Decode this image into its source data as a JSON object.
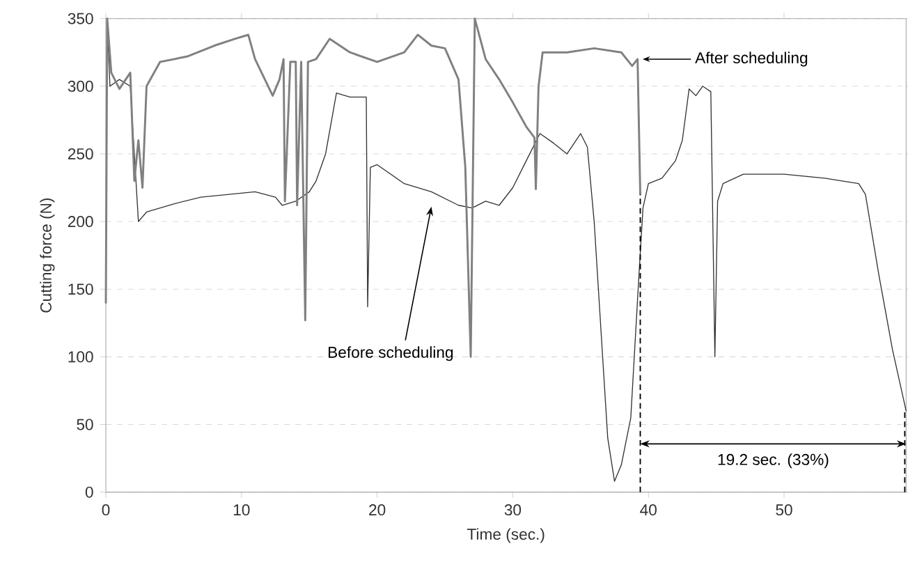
{
  "chart_data": {
    "type": "line",
    "xlabel": "Time (sec.)",
    "ylabel": "Cutting force (N)",
    "xlim": [
      0,
      59
    ],
    "xticks": [
      0,
      10,
      20,
      30,
      40,
      50
    ],
    "ylim": [
      0,
      350
    ],
    "yticks": [
      0,
      50,
      100,
      150,
      200,
      250,
      300,
      350
    ],
    "grid": "y",
    "ref_lines": [
      {
        "axis": "x",
        "value": 39.4,
        "color": "#000000",
        "line_style": "dashed"
      },
      {
        "axis": "x",
        "value": 58.9,
        "color": "#000000",
        "line_style": "dashed"
      }
    ],
    "series": [
      {
        "color": "#333333",
        "x": [
          0,
          0.1,
          0.3,
          1,
          1.8,
          2.4,
          3,
          5,
          7,
          9,
          11,
          12.5,
          13,
          14,
          15,
          15.5,
          16.2,
          17,
          18,
          19.2,
          19.3,
          19.5,
          20,
          22,
          24,
          26,
          27,
          28,
          29,
          30,
          31,
          32,
          33,
          34,
          35,
          35.5,
          36,
          36.5,
          37,
          37.5,
          38,
          38.7,
          39.3,
          39.6,
          40,
          41,
          42,
          42.5,
          43,
          43.5,
          44,
          44.6,
          44.9,
          45.1,
          45.5,
          47,
          50,
          53,
          55.5,
          56,
          57,
          58,
          59
        ],
        "values": [
          145,
          350,
          300,
          305,
          300,
          200,
          207,
          213,
          218,
          220,
          222,
          218,
          212,
          215,
          222,
          230,
          250,
          295,
          292,
          292,
          137,
          240,
          242,
          228,
          222,
          212,
          210,
          215,
          212,
          225,
          245,
          265,
          258,
          250,
          265,
          255,
          200,
          120,
          40,
          8,
          20,
          55,
          160,
          210,
          228,
          232,
          245,
          260,
          298,
          293,
          300,
          296,
          100,
          215,
          228,
          235,
          235,
          232,
          228,
          220,
          160,
          105,
          60
        ]
      },
      {
        "color": "#808080",
        "x": [
          0,
          0.1,
          0.4,
          1,
          1.8,
          2.1,
          2.4,
          2.7,
          3,
          4,
          6,
          8,
          9.5,
          10.5,
          11,
          12.3,
          12.8,
          13.1,
          13.2,
          13.6,
          14,
          14.1,
          14.4,
          14.7,
          14.9,
          15.5,
          16.5,
          18,
          20,
          22,
          23,
          24,
          25,
          26,
          26.5,
          26.9,
          27.2,
          28,
          29,
          30,
          31,
          31.6,
          31.7,
          31.9,
          32.2,
          34,
          36,
          38,
          38.8,
          39.2,
          39.4
        ],
        "values": [
          140,
          350,
          310,
          298,
          310,
          230,
          260,
          225,
          300,
          318,
          322,
          330,
          335,
          338,
          320,
          293,
          305,
          320,
          215,
          318,
          318,
          212,
          318,
          127,
          318,
          320,
          335,
          325,
          318,
          325,
          338,
          330,
          328,
          305,
          240,
          100,
          350,
          320,
          305,
          288,
          270,
          262,
          224,
          300,
          325,
          325,
          328,
          325,
          315,
          320,
          220
        ]
      }
    ],
    "annotations": [
      {
        "text": "After scheduling",
        "x": 39.3,
        "y": 320
      },
      "Before scheduling",
      "19.2 sec. (33%)"
    ]
  }
}
